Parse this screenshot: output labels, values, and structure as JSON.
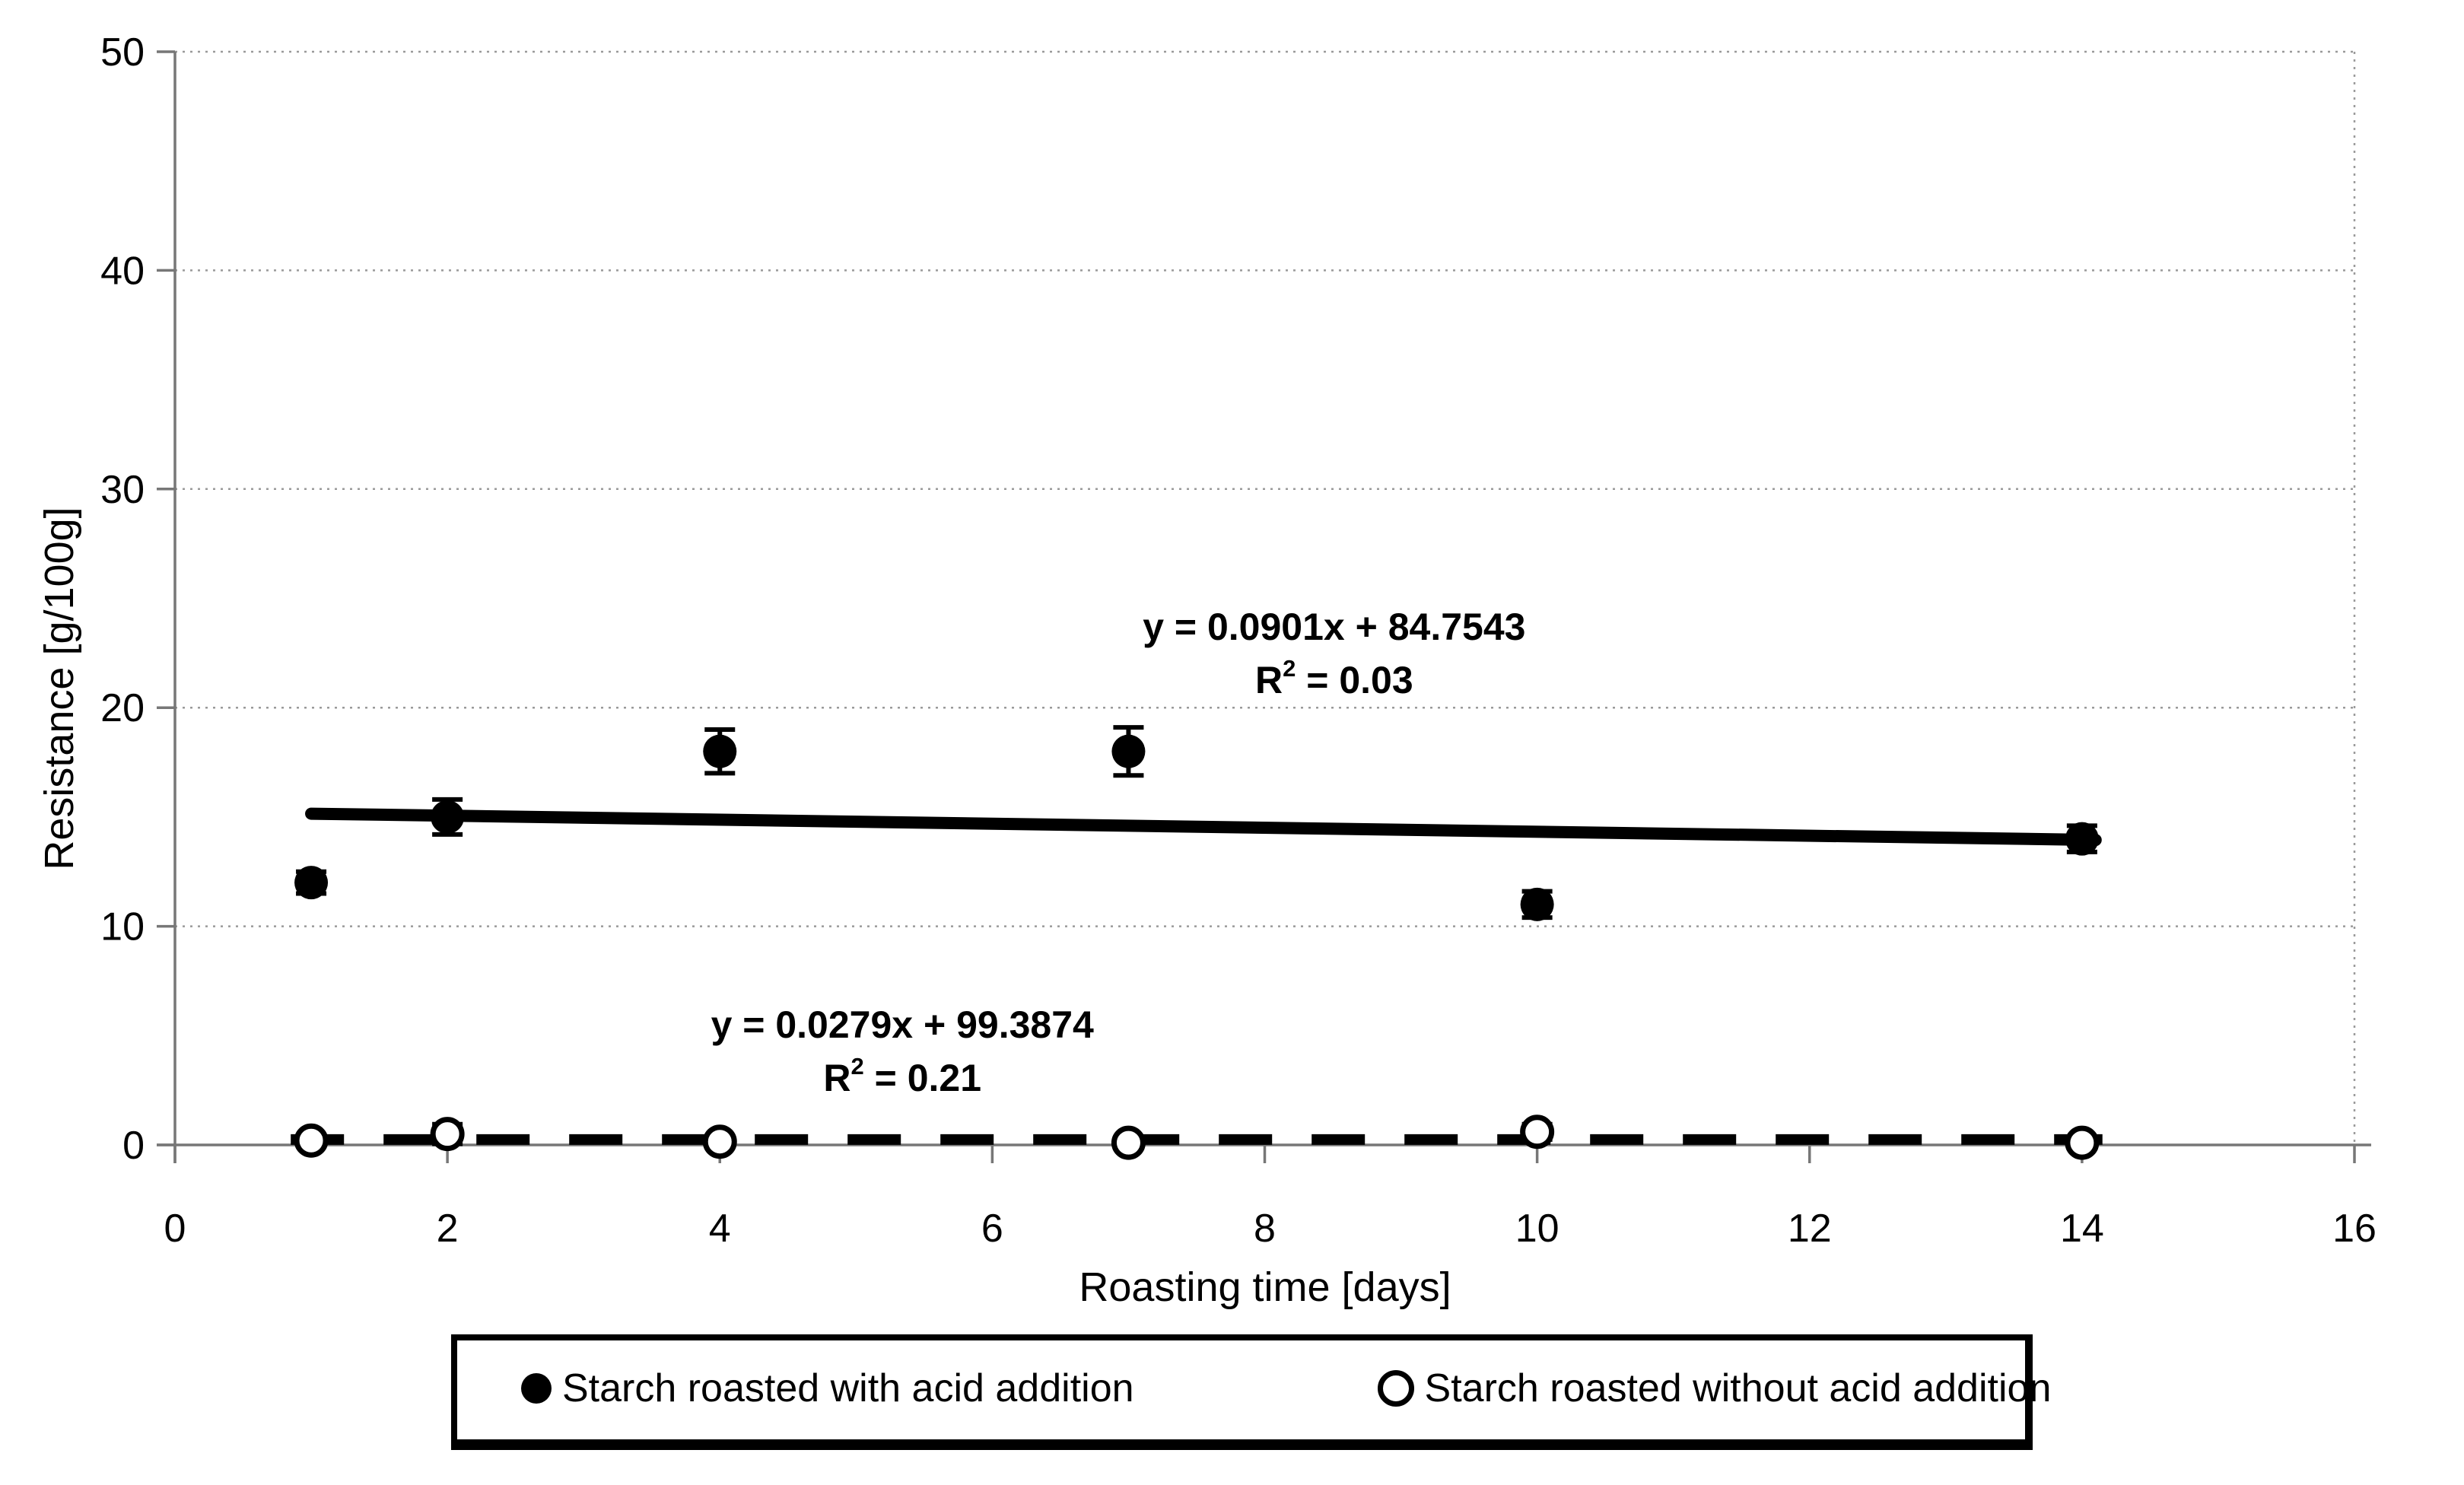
{
  "figure": {
    "background": "#ffffff",
    "text_color": "#000000",
    "grid_color": "#9a9a9a",
    "axis_color": "#777777",
    "series_color": "#000000"
  },
  "chart_data": {
    "type": "scatter",
    "title": "",
    "xlabel": "Roasting time [days]",
    "ylabel": "Resistance [g/100g]",
    "xlim": [
      0,
      16
    ],
    "ylim": [
      0,
      50
    ],
    "xticks": [
      0,
      2,
      4,
      6,
      8,
      10,
      12,
      14,
      16
    ],
    "yticks": [
      0,
      10,
      20,
      30,
      40,
      50
    ],
    "grid": "horizontal",
    "legend_position": "bottom",
    "series": [
      {
        "name": "Starch roasted with acid addition",
        "marker": "filled-circle",
        "color": "#000000",
        "x": [
          1,
          2,
          4,
          7,
          10,
          14
        ],
        "y": [
          12,
          15,
          18,
          18,
          11,
          14
        ],
        "yerr": [
          0.5,
          0.8,
          1.0,
          1.1,
          0.6,
          0.6
        ],
        "trendline": {
          "style": "solid",
          "x1": 1.0,
          "y1": 15.15,
          "x2": 14.1,
          "y2": 13.95,
          "equation": "y = 0.0901x + 84.7543",
          "r_squared": "0.03"
        }
      },
      {
        "name": "Starch roasted without acid addition",
        "marker": "open-circle",
        "color": "#000000",
        "x": [
          1,
          2,
          4,
          7,
          10,
          14
        ],
        "y": [
          0.2,
          0.5,
          0.15,
          0.1,
          0.6,
          0.1
        ],
        "yerr": [
          0.15,
          0.45,
          0.15,
          0.1,
          0.35,
          0.1
        ],
        "trendline": {
          "style": "dashed",
          "x1": 0.85,
          "y1": 0.25,
          "x2": 14.15,
          "y2": 0.25,
          "equation": "y = 0.0279x + 99.3874",
          "r_squared": "0.21"
        }
      }
    ],
    "annotations": [
      {
        "line1": "y = 0.0901x + 84.7543",
        "r2_prefix": "R",
        "r2_sup": "2",
        "r2_tail": " = 0.03",
        "x": 8.51,
        "y_line1": 23.7,
        "y_line2": 21.2
      },
      {
        "line1": "y = 0.0279x + 99.3874",
        "r2_prefix": "R",
        "r2_sup": "2",
        "r2_tail": " = 0.21",
        "x": 5.34,
        "y_line1": 5.5,
        "y_line2": 3.1
      }
    ]
  },
  "legend": {
    "entries": [
      {
        "label": "Starch roasted with acid addition",
        "marker": "filled-circle"
      },
      {
        "label": "Starch roasted without acid addition",
        "marker": "open-circle"
      }
    ]
  }
}
